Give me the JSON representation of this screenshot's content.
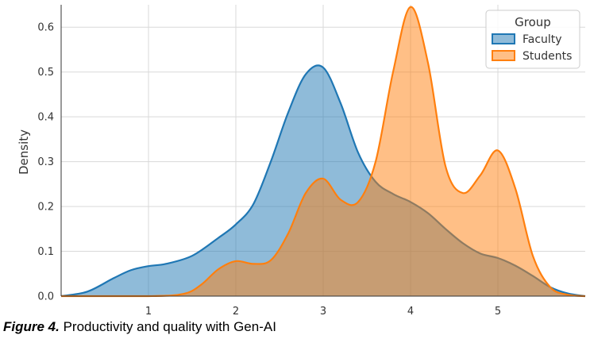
{
  "caption": {
    "figure_label": "Figure 4.",
    "text": " Productivity and quality with Gen-AI"
  },
  "colors": {
    "faculty": "#1f77b4",
    "students": "#ff7f0e",
    "grid": "#d9d9d9",
    "axis": "#333333"
  },
  "chart_data": {
    "type": "area",
    "title": "",
    "xlabel": "",
    "ylabel": "Density",
    "xlim": [
      0,
      6
    ],
    "ylim": [
      0,
      0.65
    ],
    "xticks": [
      1,
      2,
      3,
      4,
      5
    ],
    "yticks": [
      0.0,
      0.1,
      0.2,
      0.3,
      0.4,
      0.5,
      0.6
    ],
    "grid": true,
    "legend": {
      "title": "Group",
      "placement": "top-right"
    },
    "series": [
      {
        "name": "Faculty",
        "color": "#1f77b4",
        "x": [
          0,
          0.3,
          0.6,
          0.8,
          1.0,
          1.2,
          1.5,
          1.8,
          2.0,
          2.2,
          2.4,
          2.6,
          2.8,
          3.0,
          3.2,
          3.4,
          3.6,
          3.8,
          4.0,
          4.2,
          4.4,
          4.6,
          4.8,
          5.0,
          5.2,
          5.4,
          5.6,
          5.8,
          6.0
        ],
        "values": [
          0.0,
          0.01,
          0.04,
          0.058,
          0.067,
          0.072,
          0.09,
          0.13,
          0.16,
          0.205,
          0.3,
          0.41,
          0.495,
          0.51,
          0.43,
          0.32,
          0.255,
          0.228,
          0.21,
          0.185,
          0.15,
          0.118,
          0.095,
          0.085,
          0.068,
          0.045,
          0.02,
          0.006,
          0.0
        ]
      },
      {
        "name": "Students",
        "color": "#ff7f0e",
        "x": [
          0,
          1.0,
          1.4,
          1.6,
          1.8,
          2.0,
          2.2,
          2.4,
          2.6,
          2.8,
          3.0,
          3.2,
          3.4,
          3.6,
          3.8,
          4.0,
          4.2,
          4.4,
          4.6,
          4.8,
          5.0,
          5.2,
          5.4,
          5.6,
          5.8,
          6.0
        ],
        "values": [
          0.0,
          0.0,
          0.005,
          0.025,
          0.06,
          0.078,
          0.072,
          0.08,
          0.14,
          0.23,
          0.262,
          0.215,
          0.21,
          0.3,
          0.5,
          0.645,
          0.52,
          0.29,
          0.23,
          0.27,
          0.325,
          0.24,
          0.09,
          0.02,
          0.003,
          0.0
        ]
      }
    ]
  }
}
